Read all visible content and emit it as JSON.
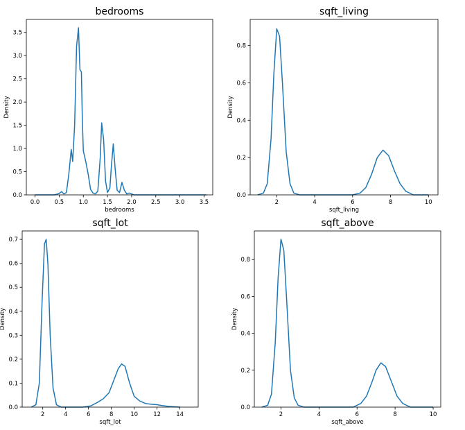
{
  "chart_data": [
    {
      "type": "line",
      "title": "bedrooms",
      "xlabel": "bedrooms",
      "ylabel": "Density",
      "xlim": [
        -0.18,
        3.68
      ],
      "ylim": [
        0,
        3.78
      ],
      "xticks": [
        "0.0",
        "0.5",
        "1.0",
        "1.5",
        "2.0",
        "2.5",
        "3.0",
        "3.5"
      ],
      "yticks": [
        "0.0",
        "0.5",
        "1.0",
        "1.5",
        "2.0",
        "2.5",
        "3.0",
        "3.5"
      ],
      "color": "#1f77b4",
      "grid": false,
      "series": [
        {
          "x": [
            0.0,
            0.2,
            0.4,
            0.5,
            0.55,
            0.6,
            0.65,
            0.7,
            0.75,
            0.78,
            0.82,
            0.86,
            0.9,
            0.93,
            0.96,
            0.98,
            1.0,
            1.05,
            1.1,
            1.15,
            1.2,
            1.25,
            1.3,
            1.35,
            1.38,
            1.42,
            1.46,
            1.5,
            1.55,
            1.58,
            1.62,
            1.66,
            1.7,
            1.75,
            1.8,
            1.85,
            1.9,
            1.95,
            2.0,
            2.05,
            2.1,
            3.55
          ],
          "y": [
            0.0,
            0.0,
            0.0,
            0.03,
            0.07,
            0.02,
            0.05,
            0.45,
            0.98,
            0.72,
            1.5,
            3.2,
            3.6,
            2.7,
            2.65,
            1.6,
            0.95,
            0.72,
            0.45,
            0.12,
            0.04,
            0.02,
            0.08,
            0.8,
            1.55,
            1.2,
            0.3,
            0.05,
            0.15,
            0.6,
            1.1,
            0.55,
            0.1,
            0.05,
            0.27,
            0.1,
            0.02,
            0.04,
            0.02,
            0.0,
            0.0,
            0.0
          ]
        }
      ]
    },
    {
      "type": "line",
      "title": "sqft_living",
      "xlabel": "sqft_living",
      "ylabel": "Density",
      "xlim": [
        0.6,
        10.5
      ],
      "ylim": [
        0,
        0.94
      ],
      "xticks": [
        "2",
        "4",
        "6",
        "8",
        "10"
      ],
      "yticks": [
        "0.0",
        "0.2",
        "0.4",
        "0.6",
        "0.8"
      ],
      "color": "#1f77b4",
      "grid": false,
      "series": [
        {
          "x": [
            1.0,
            1.3,
            1.5,
            1.7,
            1.85,
            2.0,
            2.15,
            2.3,
            2.5,
            2.7,
            2.9,
            3.2,
            4.0,
            5.0,
            6.0,
            6.4,
            6.7,
            7.0,
            7.3,
            7.6,
            7.9,
            8.2,
            8.5,
            8.8,
            9.2,
            10.0
          ],
          "y": [
            0.0,
            0.01,
            0.06,
            0.3,
            0.65,
            0.89,
            0.85,
            0.6,
            0.23,
            0.06,
            0.01,
            0.0,
            0.0,
            0.0,
            0.0,
            0.01,
            0.04,
            0.11,
            0.2,
            0.24,
            0.21,
            0.13,
            0.06,
            0.02,
            0.0,
            0.0
          ]
        }
      ]
    },
    {
      "type": "line",
      "title": "sqft_lot",
      "xlabel": "sqft_lot",
      "ylabel": "Density",
      "xlim": [
        0.2,
        15.6
      ],
      "ylim": [
        0,
        0.735
      ],
      "xticks": [
        "2",
        "4",
        "6",
        "8",
        "10",
        "12",
        "14"
      ],
      "yticks": [
        "0.0",
        "0.1",
        "0.2",
        "0.3",
        "0.4",
        "0.5",
        "0.6",
        "0.7"
      ],
      "color": "#1f77b4",
      "grid": false,
      "series": [
        {
          "x": [
            1.0,
            1.4,
            1.7,
            1.95,
            2.15,
            2.3,
            2.45,
            2.65,
            2.9,
            3.2,
            3.6,
            4.5,
            5.5,
            6.2,
            6.8,
            7.3,
            7.8,
            8.2,
            8.6,
            8.9,
            9.2,
            9.6,
            10.0,
            10.5,
            11.0,
            11.5,
            12.0,
            12.5,
            13.0,
            14.0
          ],
          "y": [
            0.0,
            0.01,
            0.1,
            0.45,
            0.68,
            0.7,
            0.6,
            0.3,
            0.08,
            0.01,
            0.0,
            0.0,
            0.0,
            0.005,
            0.02,
            0.035,
            0.06,
            0.11,
            0.16,
            0.18,
            0.17,
            0.1,
            0.045,
            0.025,
            0.015,
            0.012,
            0.01,
            0.006,
            0.003,
            0.0
          ]
        }
      ]
    },
    {
      "type": "line",
      "title": "sqft_above",
      "xlabel": "sqft_above",
      "ylabel": "Density",
      "xlim": [
        0.6,
        10.4
      ],
      "ylim": [
        0,
        0.955
      ],
      "xticks": [
        "2",
        "4",
        "6",
        "8",
        "10"
      ],
      "yticks": [
        "0.0",
        "0.2",
        "0.4",
        "0.6",
        "0.8"
      ],
      "color": "#1f77b4",
      "grid": false,
      "series": [
        {
          "x": [
            1.0,
            1.3,
            1.5,
            1.7,
            1.85,
            2.0,
            2.15,
            2.3,
            2.5,
            2.7,
            2.9,
            3.2,
            4.0,
            5.0,
            5.8,
            6.2,
            6.5,
            6.8,
            7.0,
            7.25,
            7.5,
            7.8,
            8.1,
            8.4,
            8.8,
            10.0
          ],
          "y": [
            0.0,
            0.01,
            0.07,
            0.35,
            0.7,
            0.91,
            0.85,
            0.58,
            0.2,
            0.05,
            0.01,
            0.0,
            0.0,
            0.0,
            0.0,
            0.02,
            0.06,
            0.14,
            0.2,
            0.24,
            0.22,
            0.14,
            0.06,
            0.02,
            0.0,
            0.0
          ]
        }
      ]
    }
  ]
}
